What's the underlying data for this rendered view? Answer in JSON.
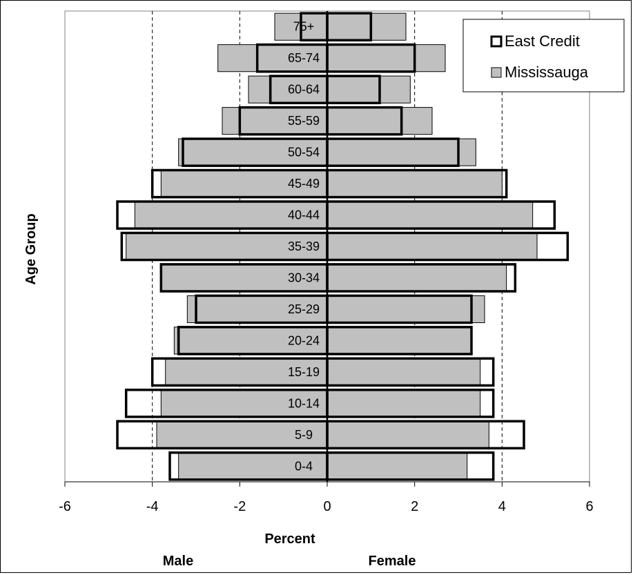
{
  "chart_data": {
    "type": "bar",
    "orientation": "horizontal",
    "subtype": "population-pyramid",
    "ylabel": "Age Group",
    "xlabel": "Percent",
    "side_labels": {
      "left": "Male",
      "right": "Female"
    },
    "xlim": [
      -6,
      6
    ],
    "x_ticks": [
      "-6",
      "-4",
      "-2",
      "0",
      "2",
      "4",
      "6"
    ],
    "gridlines": "dashed-vertical",
    "legend_position": "top-right",
    "categories": [
      "0-4",
      "5-9",
      "10-14",
      "15-19",
      "20-24",
      "25-29",
      "30-34",
      "35-39",
      "40-44",
      "45-49",
      "50-54",
      "55-59",
      "60-64",
      "65-74",
      "75+"
    ],
    "series": [
      {
        "name": "Mississauga",
        "style": "filled",
        "color": "#c0c0c0",
        "male": [
          -3.4,
          -3.9,
          -3.8,
          -3.7,
          -3.5,
          -3.2,
          -3.8,
          -4.6,
          -4.4,
          -3.8,
          -3.4,
          -2.4,
          -1.8,
          -2.5,
          -1.2
        ],
        "female": [
          3.2,
          3.7,
          3.5,
          3.5,
          3.3,
          3.6,
          4.1,
          4.8,
          4.7,
          4.0,
          3.4,
          2.4,
          1.9,
          2.7,
          1.8
        ]
      },
      {
        "name": "East Credit",
        "style": "outline",
        "color": "#000000",
        "male": [
          -3.6,
          -4.8,
          -4.6,
          -4.0,
          -3.4,
          -3.0,
          -3.8,
          -4.7,
          -4.8,
          -4.0,
          -3.3,
          -2.0,
          -1.3,
          -1.6,
          -0.6
        ],
        "female": [
          3.8,
          4.5,
          3.8,
          3.8,
          3.3,
          3.3,
          4.3,
          5.5,
          5.2,
          4.1,
          3.0,
          1.7,
          1.2,
          2.0,
          1.0
        ]
      }
    ]
  }
}
